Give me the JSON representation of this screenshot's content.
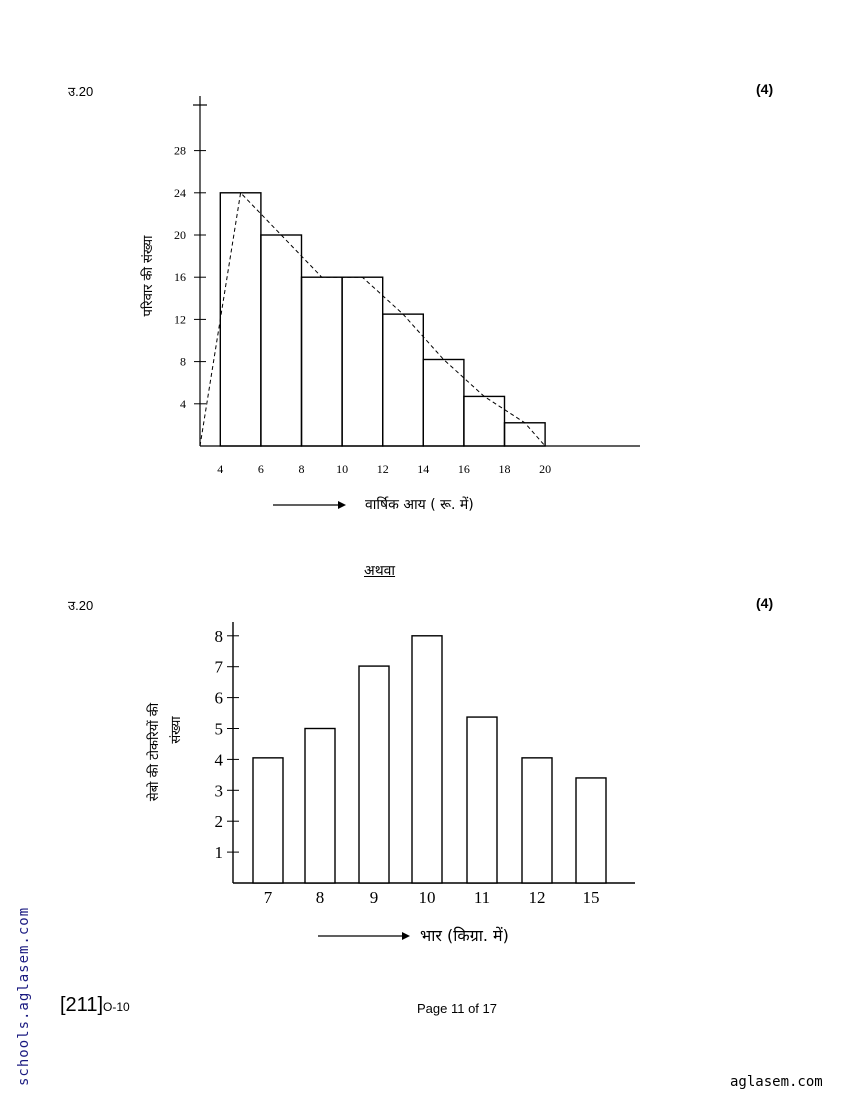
{
  "page": {
    "question_label_1": "उ.20",
    "marks_1": "(4)",
    "or_label": "अथवा",
    "question_label_2": "उ.20",
    "marks_2": "(4)",
    "footer_code": "[211]",
    "footer_code_suffix": "O-10",
    "page_number": "Page 11 of 17",
    "watermark_side": "schools.aglasem.com",
    "watermark_bottom": "aglasem.com"
  },
  "chart_data": [
    {
      "type": "bar",
      "subtype": "histogram-with-frequency-polygon",
      "xlabel": "वार्षिक आय ( रू. में)",
      "ylabel": "परिवार की संख्या",
      "x_ticks": [
        "4",
        "6",
        "8",
        "10",
        "12",
        "14",
        "16",
        "18",
        "20"
      ],
      "y_ticks": [
        "4",
        "8",
        "12",
        "16",
        "20",
        "24",
        "28"
      ],
      "xlim": [
        2.8,
        24
      ],
      "ylim": [
        0,
        32
      ],
      "bins": [
        {
          "from": 4,
          "to": 6,
          "value": 24
        },
        {
          "from": 6,
          "to": 8,
          "value": 20
        },
        {
          "from": 8,
          "to": 10,
          "value": 16
        },
        {
          "from": 10,
          "to": 12,
          "value": 16
        },
        {
          "from": 12,
          "to": 14,
          "value": 12.5
        },
        {
          "from": 14,
          "to": 16,
          "value": 8.2
        },
        {
          "from": 16,
          "to": 18,
          "value": 4.7
        },
        {
          "from": 18,
          "to": 20,
          "value": 2.2
        }
      ],
      "polygon": [
        {
          "x": 3,
          "y": 0
        },
        {
          "x": 5,
          "y": 24
        },
        {
          "x": 7,
          "y": 20
        },
        {
          "x": 9,
          "y": 16
        },
        {
          "x": 11,
          "y": 16
        },
        {
          "x": 13,
          "y": 12.5
        },
        {
          "x": 15,
          "y": 8.2
        },
        {
          "x": 17,
          "y": 4.7
        },
        {
          "x": 19,
          "y": 2.2
        },
        {
          "x": 20,
          "y": 0
        }
      ]
    },
    {
      "type": "bar",
      "categories": [
        "7",
        "8",
        "9",
        "10",
        "11",
        "12",
        "15"
      ],
      "values": [
        4.05,
        5,
        7.02,
        8,
        5.37,
        4.05,
        3.4
      ],
      "y_ticks": [
        "1",
        "2",
        "3",
        "4",
        "5",
        "6",
        "7",
        "8"
      ],
      "ylim": [
        0,
        8.5
      ],
      "xlabel": "भार (किग्रा. में)",
      "ylabel_line1": "सेबो की टोकरियों की",
      "ylabel_line2": "संख्या"
    }
  ]
}
